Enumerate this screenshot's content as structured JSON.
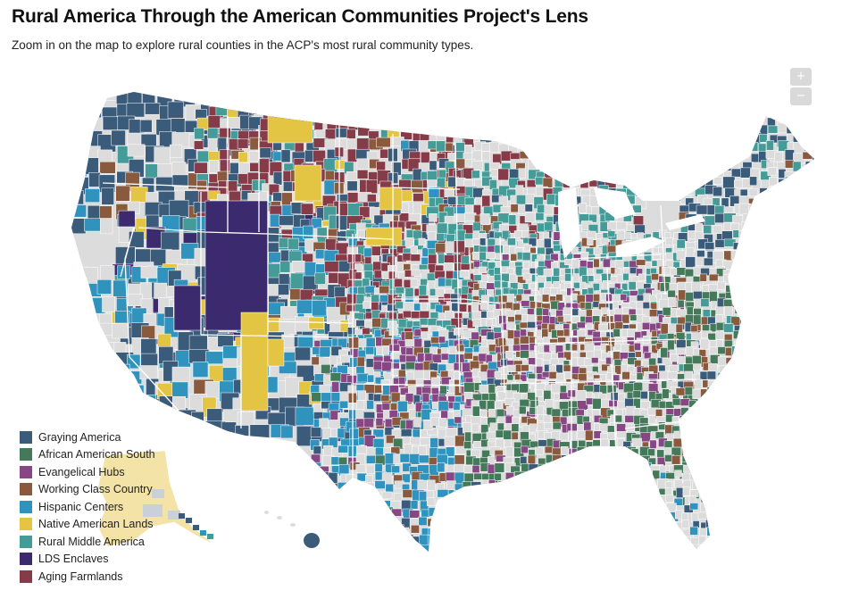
{
  "header": {
    "title": "Rural America Through the American Communities Project's Lens",
    "subtitle": "Zoom in on the map to explore rural counties in the ACP's most rural community types."
  },
  "zoom": {
    "in_label": "+",
    "out_label": "−"
  },
  "colors": {
    "non_rural": "#dcdcdc",
    "outline": "#ffffff",
    "state_border": "#ffffff",
    "alaska_fill": "#f3e3a6",
    "alaska_islands": "#c9d0d8"
  },
  "legend": {
    "items": [
      {
        "label": "Graying America",
        "color": "#3b5b7a"
      },
      {
        "label": "African American South",
        "color": "#447a5a"
      },
      {
        "label": "Evangelical Hubs",
        "color": "#874785"
      },
      {
        "label": "Working Class Country",
        "color": "#8a5a3e"
      },
      {
        "label": "Hispanic Centers",
        "color": "#2f93bd"
      },
      {
        "label": "Native American Lands",
        "color": "#e3c443"
      },
      {
        "label": "Rural Middle America",
        "color": "#449b97"
      },
      {
        "label": "LDS Enclaves",
        "color": "#3b2a6e"
      },
      {
        "label": "Aging Farmlands",
        "color": "#863b49"
      }
    ]
  }
}
